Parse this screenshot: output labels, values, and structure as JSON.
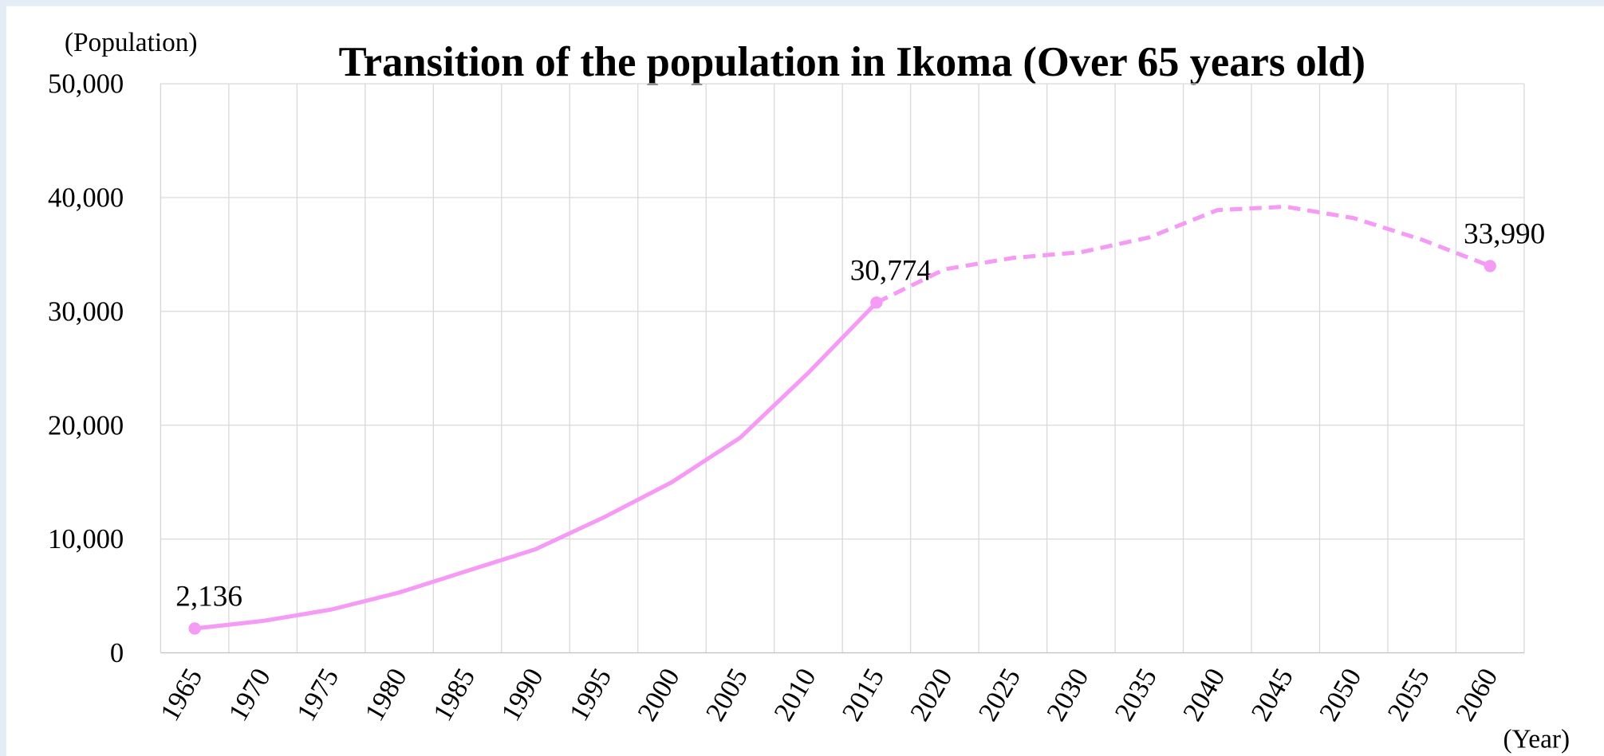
{
  "chart_data": {
    "type": "line",
    "title": "Transition of the population in Ikoma (Over 65 years old)",
    "y_label": "(Population)",
    "x_label": "(Year)",
    "categories": [
      "1965",
      "1970",
      "1975",
      "1980",
      "1985",
      "1990",
      "1995",
      "2000",
      "2005",
      "2010",
      "2015",
      "2020",
      "2025",
      "2030",
      "2035",
      "2040",
      "2045",
      "2050",
      "2055",
      "2060"
    ],
    "series": [
      {
        "color": "#f59af5",
        "style": "solid",
        "values": [
          2136,
          2800,
          3800,
          5300,
          7200,
          9100,
          11900,
          15000,
          18900,
          24600,
          30774,
          null,
          null,
          null,
          null,
          null,
          null,
          null,
          null,
          null
        ],
        "value_labels": [
          "2,136",
          null,
          null,
          null,
          null,
          null,
          null,
          null,
          null,
          null,
          "30,774",
          null,
          null,
          null,
          null,
          null,
          null,
          null,
          null,
          null
        ]
      },
      {
        "color": "#f59af5",
        "style": "dashed",
        "values": [
          null,
          null,
          null,
          null,
          null,
          null,
          null,
          null,
          null,
          null,
          30774,
          33700,
          34700,
          35200,
          36500,
          38900,
          39200,
          38200,
          36300,
          33990
        ],
        "value_labels": [
          null,
          null,
          null,
          null,
          null,
          null,
          null,
          null,
          null,
          null,
          null,
          null,
          null,
          null,
          null,
          null,
          null,
          null,
          null,
          "33,990"
        ]
      }
    ],
    "ylim": [
      0,
      50000
    ],
    "yticks": [
      0,
      {
        "value": 10000,
        "label": "10,000"
      },
      {
        "value": 20000,
        "label": "20,000"
      },
      {
        "value": 30000,
        "label": "30,000"
      },
      {
        "value": 40000,
        "label": "40,000"
      },
      {
        "value": 50000,
        "label": "50,000"
      }
    ],
    "grid": true
  }
}
